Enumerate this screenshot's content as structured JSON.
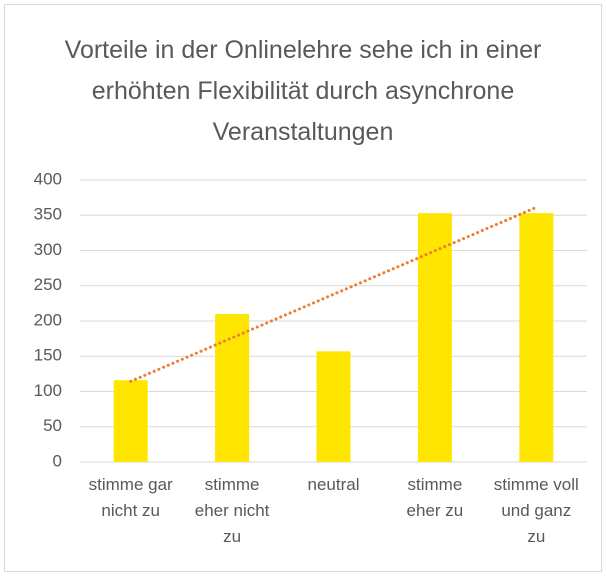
{
  "chart_data": {
    "type": "bar",
    "title": "Vorteile in der Onlinelehre sehe ich in einer erhöhten Flexibilität durch asynchrone Veranstaltungen",
    "categories": [
      "stimme gar nicht zu",
      "stimme eher nicht zu",
      "neutral",
      "stimme eher zu",
      "stimme voll und ganz zu"
    ],
    "values": [
      116,
      210,
      157,
      353,
      353
    ],
    "color": "#ffe600",
    "ylim": [
      0,
      400
    ],
    "yticks": [
      0,
      50,
      100,
      150,
      200,
      250,
      300,
      350,
      400
    ],
    "grid": true,
    "trendline": "linear",
    "trendline_color": "#ed7d31"
  }
}
